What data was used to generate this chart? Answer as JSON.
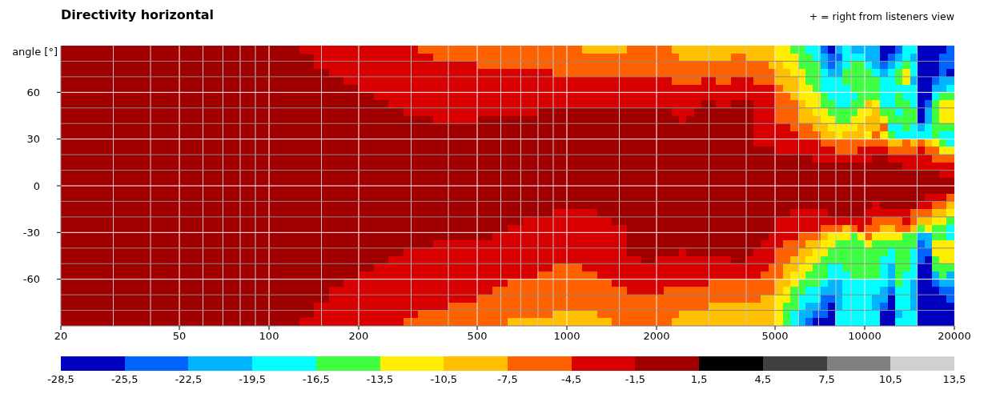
{
  "chart_data": {
    "type": "heatmap",
    "title": "Directivity horizontal",
    "ylabel": "angle [°]",
    "annotations": [
      "+ = right from listeners view"
    ],
    "x": [
      21.2,
      23.8,
      26.7,
      29.9,
      33.6,
      37.7,
      42.3,
      47.4,
      53.2,
      59.7,
      67,
      75.2,
      84.3,
      94.6,
      106,
      119,
      134,
      150,
      168,
      189,
      212,
      238,
      267,
      299,
      336,
      377,
      423,
      474,
      532,
      597,
      670,
      752,
      843,
      946,
      1060,
      1190,
      1340,
      1500,
      1680,
      1890,
      2060,
      2180,
      2310,
      2450,
      2590,
      2750,
      2910,
      3080,
      3260,
      3460,
      3660,
      3880,
      4110,
      4350,
      4610,
      4880,
      5170,
      5480,
      5800,
      6150,
      6510,
      6890,
      7300,
      7740,
      8190,
      8680,
      9190,
      9740,
      10300,
      10900,
      11600,
      12300,
      13000,
      13800,
      14600,
      15400,
      16400,
      17300,
      18300,
      19400
    ],
    "xlim": [
      20,
      20000
    ],
    "xticks": [
      20,
      {
        "value": 30,
        "label": null
      },
      {
        "value": 40,
        "label": null
      },
      50,
      {
        "value": 60,
        "label": null
      },
      {
        "value": 70,
        "label": null
      },
      {
        "value": 80,
        "label": null
      },
      {
        "value": 90,
        "label": null
      },
      100,
      {
        "value": 150,
        "label": null
      },
      200,
      {
        "value": 300,
        "label": null
      },
      {
        "value": 400,
        "label": null
      },
      500,
      {
        "value": 600,
        "label": null
      },
      {
        "value": 700,
        "label": null
      },
      {
        "value": 800,
        "label": null
      },
      {
        "value": 900,
        "label": null
      },
      1000,
      {
        "value": 1500,
        "label": null
      },
      2000,
      {
        "value": 3000,
        "label": null
      },
      {
        "value": 4000,
        "label": null
      },
      5000,
      {
        "value": 6000,
        "label": null
      },
      {
        "value": 7000,
        "label": null
      },
      {
        "value": 8000,
        "label": null
      },
      {
        "value": 9000,
        "label": null
      },
      10000,
      {
        "value": 15000,
        "label": null
      },
      20000
    ],
    "log": "x",
    "ylim": [
      -90,
      90
    ],
    "yticks": [
      {
        "value": -80,
        "label": null
      },
      {
        "value": -70,
        "label": null
      },
      -60,
      {
        "value": -50,
        "label": null
      },
      {
        "value": -40,
        "label": null
      },
      -30,
      {
        "value": -20,
        "label": null
      },
      {
        "value": -10,
        "label": null
      },
      0,
      {
        "value": 10,
        "label": null
      },
      {
        "value": 20,
        "label": null
      },
      30,
      {
        "value": 40,
        "label": null
      },
      {
        "value": 50,
        "label": null
      },
      60,
      {
        "value": 70,
        "label": null
      },
      {
        "value": 80,
        "label": null
      }
    ],
    "grid": true,
    "clim": [
      -28.5,
      13.5
    ],
    "cticks": [
      {
        "value": -28.5,
        "label": "-28,5"
      },
      {
        "value": -25.5,
        "label": "-25,5"
      },
      {
        "value": -22.5,
        "label": "-22,5"
      },
      {
        "value": -19.5,
        "label": "-19,5"
      },
      {
        "value": -16.5,
        "label": "-16,5"
      },
      {
        "value": -13.5,
        "label": "-13,5"
      },
      {
        "value": -10.5,
        "label": "-10,5"
      },
      {
        "value": -7.5,
        "label": "-7,5"
      },
      {
        "value": -4.5,
        "label": "-4,5"
      },
      {
        "value": -1.5,
        "label": "-1,5"
      },
      {
        "value": 1.5,
        "label": "1,5"
      },
      {
        "value": 4.5,
        "label": "4,5"
      },
      {
        "value": 7.5,
        "label": "7,5"
      },
      {
        "value": 10.5,
        "label": "10,5"
      },
      {
        "value": 13.5,
        "label": "13,5"
      }
    ],
    "cells": [
      [
        0,
        0,
        0,
        0,
        0,
        0,
        0,
        0,
        0,
        0,
        0,
        0,
        0,
        0,
        0,
        0,
        -3,
        -3,
        -3,
        -3,
        -3,
        -3,
        -3,
        -3,
        -6,
        -6,
        -6,
        -6,
        -6,
        -6,
        -6,
        -6,
        -6,
        -6,
        -6,
        -9,
        -9,
        -9,
        -6,
        -6,
        -6,
        -6,
        -9,
        -9,
        -9,
        -9,
        -9,
        -9,
        -9,
        -9,
        -9,
        -9,
        -9,
        -9,
        -9,
        -9,
        -12,
        -12,
        -15,
        -15,
        -18,
        -18,
        -24,
        -27,
        -21,
        -18,
        -21,
        -21,
        -21,
        -21,
        -27,
        -27,
        -24,
        -18,
        -18,
        -27,
        -27,
        -27,
        -27,
        -24
      ],
      [
        0,
        0,
        0,
        0,
        0,
        0,
        0,
        0,
        0,
        0,
        0,
        0,
        0,
        0,
        0,
        0,
        0,
        -3,
        -3,
        -3,
        -3,
        -3,
        -3,
        -3,
        -3,
        -6,
        -6,
        -6,
        -6,
        -6,
        -6,
        -6,
        -6,
        -6,
        -6,
        -6,
        -6,
        -6,
        -6,
        -6,
        -6,
        -6,
        -6,
        -9,
        -9,
        -9,
        -9,
        -9,
        -9,
        -9,
        -6,
        -6,
        -9,
        -9,
        -9,
        -9,
        -12,
        -12,
        -12,
        -15,
        -15,
        -18,
        -21,
        -24,
        -24,
        -18,
        -18,
        -18,
        -21,
        -21,
        -27,
        -24,
        -21,
        -18,
        -21,
        -27,
        -27,
        -27,
        -24,
        -24
      ],
      [
        0,
        0,
        0,
        0,
        0,
        0,
        0,
        0,
        0,
        0,
        0,
        0,
        0,
        0,
        0,
        0,
        0,
        -3,
        -3,
        -3,
        -3,
        -3,
        -3,
        -3,
        -3,
        -3,
        -3,
        -3,
        -6,
        -6,
        -6,
        -6,
        -6,
        -6,
        -6,
        -6,
        -6,
        -6,
        -6,
        -6,
        -6,
        -6,
        -6,
        -6,
        -6,
        -6,
        -6,
        -6,
        -6,
        -6,
        -6,
        -6,
        -6,
        -6,
        -6,
        -9,
        -9,
        -12,
        -12,
        -15,
        -15,
        -15,
        -21,
        -24,
        -21,
        -18,
        -15,
        -15,
        -18,
        -21,
        -24,
        -21,
        -18,
        -15,
        -18,
        -27,
        -27,
        -27,
        -24,
        -24
      ],
      [
        0,
        0,
        0,
        0,
        0,
        0,
        0,
        0,
        0,
        0,
        0,
        0,
        0,
        0,
        0,
        0,
        0,
        0,
        -3,
        -3,
        -3,
        -3,
        -3,
        -3,
        -3,
        -3,
        -3,
        -3,
        -3,
        -3,
        -3,
        -3,
        -3,
        -6,
        -6,
        -6,
        -6,
        -6,
        -6,
        -6,
        -6,
        -6,
        -6,
        -6,
        -6,
        -6,
        -6,
        -6,
        -6,
        -6,
        -6,
        -6,
        -6,
        -6,
        -6,
        -6,
        -9,
        -9,
        -12,
        -12,
        -15,
        -15,
        -18,
        -21,
        -21,
        -15,
        -15,
        -15,
        -15,
        -18,
        -21,
        -18,
        -15,
        -12,
        -18,
        -27,
        -27,
        -27,
        -24,
        -27
      ],
      [
        0,
        0,
        0,
        0,
        0,
        0,
        0,
        0,
        0,
        0,
        0,
        0,
        0,
        0,
        0,
        0,
        0,
        0,
        0,
        -3,
        -3,
        -3,
        -3,
        -3,
        -3,
        -3,
        -3,
        -3,
        -3,
        -3,
        -3,
        -3,
        -3,
        -3,
        -3,
        -3,
        -3,
        -3,
        -3,
        -3,
        -3,
        -3,
        -6,
        -6,
        -6,
        -6,
        -3,
        -3,
        -6,
        -6,
        -3,
        -3,
        -3,
        -6,
        -6,
        -6,
        -9,
        -9,
        -9,
        -12,
        -15,
        -15,
        -18,
        -18,
        -18,
        -15,
        -15,
        -15,
        -15,
        -15,
        -18,
        -18,
        -15,
        -12,
        -21,
        -27,
        -27,
        -24,
        -21,
        -21
      ],
      [
        0,
        0,
        0,
        0,
        0,
        0,
        0,
        0,
        0,
        0,
        0,
        0,
        0,
        0,
        0,
        0,
        0,
        0,
        0,
        0,
        -3,
        -3,
        -3,
        -3,
        -3,
        -3,
        -3,
        -3,
        -3,
        -3,
        -3,
        -3,
        -3,
        -3,
        -3,
        -3,
        -3,
        -3,
        -3,
        -3,
        -3,
        -3,
        -3,
        -3,
        -3,
        -3,
        -3,
        -3,
        -3,
        -3,
        -3,
        -3,
        -3,
        -3,
        -3,
        -3,
        -6,
        -9,
        -9,
        -12,
        -12,
        -15,
        -18,
        -18,
        -18,
        -18,
        -15,
        -15,
        -15,
        -15,
        -18,
        -18,
        -18,
        -18,
        -18,
        -27,
        -27,
        -21,
        -21,
        -18
      ],
      [
        0,
        0,
        0,
        0,
        0,
        0,
        0,
        0,
        0,
        0,
        0,
        0,
        0,
        0,
        0,
        0,
        0,
        0,
        0,
        0,
        0,
        -3,
        -3,
        -3,
        -3,
        -3,
        -3,
        -3,
        -3,
        -3,
        -3,
        -3,
        -3,
        -3,
        -3,
        -3,
        -3,
        -3,
        -3,
        -3,
        -3,
        -3,
        -3,
        -3,
        -3,
        -3,
        -3,
        -3,
        -3,
        -3,
        -3,
        -3,
        -3,
        -3,
        -3,
        -3,
        -6,
        -6,
        -9,
        -12,
        -12,
        -12,
        -15,
        -18,
        -18,
        -18,
        -18,
        -15,
        -15,
        -15,
        -18,
        -18,
        -15,
        -18,
        -18,
        -27,
        -27,
        -18,
        -15,
        -15
      ],
      [
        0,
        0,
        0,
        0,
        0,
        0,
        0,
        0,
        0,
        0,
        0,
        0,
        0,
        0,
        0,
        0,
        0,
        0,
        0,
        0,
        0,
        0,
        -3,
        -3,
        -3,
        -3,
        -3,
        -3,
        -3,
        -3,
        -3,
        -3,
        -3,
        -3,
        -3,
        -3,
        -3,
        -3,
        -3,
        -3,
        -3,
        -3,
        -3,
        -3,
        -3,
        -3,
        0,
        0,
        -3,
        -3,
        0,
        0,
        0,
        -3,
        -3,
        -3,
        -6,
        -6,
        -6,
        -9,
        -12,
        -12,
        -15,
        -15,
        -18,
        -18,
        -15,
        -15,
        -9,
        -12,
        -18,
        -18,
        -15,
        -15,
        -18,
        -27,
        -24,
        -15,
        -12,
        -12
      ],
      [
        0,
        0,
        0,
        0,
        0,
        0,
        0,
        0,
        0,
        0,
        0,
        0,
        0,
        0,
        0,
        0,
        0,
        0,
        0,
        0,
        0,
        0,
        0,
        -3,
        -3,
        -3,
        -3,
        -3,
        -3,
        -3,
        -3,
        -3,
        0,
        0,
        0,
        0,
        0,
        0,
        0,
        0,
        0,
        0,
        -3,
        -3,
        -3,
        0,
        0,
        0,
        0,
        0,
        0,
        0,
        0,
        -3,
        -3,
        -3,
        -6,
        -6,
        -6,
        -9,
        -9,
        -12,
        -12,
        -15,
        -15,
        -15,
        -15,
        -12,
        -12,
        -9,
        -15,
        -15,
        -18,
        -15,
        -15,
        -27,
        -21,
        -15,
        -12,
        -12
      ],
      [
        0,
        0,
        0,
        0,
        0,
        0,
        0,
        0,
        0,
        0,
        0,
        0,
        0,
        0,
        0,
        0,
        0,
        0,
        0,
        0,
        0,
        0,
        0,
        0,
        0,
        -3,
        -3,
        -3,
        0,
        0,
        0,
        0,
        0,
        0,
        0,
        0,
        0,
        0,
        0,
        0,
        0,
        0,
        0,
        -3,
        0,
        0,
        0,
        0,
        0,
        0,
        0,
        0,
        0,
        -3,
        -3,
        -3,
        -6,
        -6,
        -6,
        -9,
        -9,
        -9,
        -12,
        -12,
        -15,
        -15,
        -12,
        -12,
        -9,
        -9,
        -12,
        -15,
        -15,
        -15,
        -15,
        -27,
        -21,
        -15,
        -12,
        -12
      ],
      [
        0,
        0,
        0,
        0,
        0,
        0,
        0,
        0,
        0,
        0,
        0,
        0,
        0,
        0,
        0,
        0,
        0,
        0,
        0,
        0,
        0,
        0,
        0,
        0,
        0,
        0,
        0,
        0,
        0,
        0,
        0,
        0,
        0,
        0,
        0,
        0,
        0,
        0,
        0,
        0,
        0,
        0,
        0,
        0,
        0,
        0,
        0,
        0,
        0,
        0,
        0,
        0,
        0,
        -3,
        -3,
        -3,
        -3,
        -3,
        -6,
        -6,
        -6,
        -9,
        -9,
        -12,
        -12,
        -12,
        -12,
        -9,
        -9,
        -9,
        -6,
        -18,
        -18,
        -15,
        -18,
        -21,
        -18,
        -15,
        -15,
        -15
      ],
      [
        0,
        0,
        0,
        0,
        0,
        0,
        0,
        0,
        0,
        0,
        0,
        0,
        0,
        0,
        0,
        0,
        0,
        0,
        0,
        0,
        0,
        0,
        0,
        0,
        0,
        0,
        0,
        0,
        0,
        0,
        0,
        0,
        0,
        0,
        0,
        0,
        0,
        0,
        0,
        0,
        0,
        0,
        0,
        0,
        0,
        0,
        0,
        0,
        0,
        0,
        0,
        0,
        0,
        -3,
        -3,
        -3,
        -3,
        -3,
        -3,
        -6,
        -6,
        -6,
        -9,
        -9,
        -12,
        -9,
        -9,
        -9,
        -12,
        -6,
        -12,
        -15,
        -18,
        -18,
        -18,
        -18,
        -18,
        -15,
        -18,
        -18
      ],
      [
        0,
        0,
        0,
        0,
        0,
        0,
        0,
        0,
        0,
        0,
        0,
        0,
        0,
        0,
        0,
        0,
        0,
        0,
        0,
        0,
        0,
        0,
        0,
        0,
        0,
        0,
        0,
        0,
        0,
        0,
        0,
        0,
        0,
        0,
        0,
        0,
        0,
        0,
        0,
        0,
        0,
        0,
        0,
        0,
        0,
        0,
        0,
        0,
        0,
        0,
        0,
        0,
        0,
        -3,
        -3,
        -3,
        -3,
        -3,
        -3,
        -3,
        -3,
        -3,
        -6,
        -6,
        -6,
        -6,
        -6,
        -6,
        -6,
        -6,
        -6,
        -9,
        -9,
        -6,
        -9,
        -6,
        -9,
        -12,
        -15,
        -18
      ],
      [
        0,
        0,
        0,
        0,
        0,
        0,
        0,
        0,
        0,
        0,
        0,
        0,
        0,
        0,
        0,
        0,
        0,
        0,
        0,
        0,
        0,
        0,
        0,
        0,
        0,
        0,
        0,
        0,
        0,
        0,
        0,
        0,
        0,
        0,
        0,
        0,
        0,
        0,
        0,
        0,
        0,
        0,
        0,
        0,
        0,
        0,
        0,
        0,
        0,
        0,
        0,
        0,
        0,
        0,
        0,
        0,
        -3,
        -3,
        -3,
        -3,
        -3,
        -3,
        -3,
        -3,
        -6,
        -6,
        -6,
        -3,
        -3,
        -3,
        -3,
        -6,
        -6,
        -6,
        -6,
        -3,
        -6,
        -6,
        -12,
        -12
      ],
      [
        0,
        0,
        0,
        0,
        0,
        0,
        0,
        0,
        0,
        0,
        0,
        0,
        0,
        0,
        0,
        0,
        0,
        0,
        0,
        0,
        0,
        0,
        0,
        0,
        0,
        0,
        0,
        0,
        0,
        0,
        0,
        0,
        0,
        0,
        0,
        0,
        0,
        0,
        0,
        0,
        0,
        0,
        0,
        0,
        0,
        0,
        0,
        0,
        0,
        0,
        0,
        0,
        0,
        0,
        0,
        0,
        0,
        0,
        0,
        0,
        0,
        -3,
        -3,
        -3,
        -3,
        -3,
        -3,
        -3,
        -3,
        0,
        0,
        -3,
        -3,
        -3,
        -3,
        -3,
        -3,
        -6,
        -6,
        -6
      ],
      [
        0,
        0,
        0,
        0,
        0,
        0,
        0,
        0,
        0,
        0,
        0,
        0,
        0,
        0,
        0,
        0,
        0,
        0,
        0,
        0,
        0,
        0,
        0,
        0,
        0,
        0,
        0,
        0,
        0,
        0,
        0,
        0,
        0,
        0,
        0,
        0,
        0,
        0,
        0,
        0,
        0,
        0,
        0,
        0,
        0,
        0,
        0,
        0,
        0,
        0,
        0,
        0,
        0,
        0,
        0,
        0,
        0,
        0,
        0,
        0,
        0,
        0,
        0,
        0,
        0,
        0,
        0,
        0,
        0,
        0,
        0,
        0,
        0,
        -3,
        -3,
        -3,
        -3,
        -3,
        -3,
        -3
      ],
      [
        0,
        0,
        0,
        0,
        0,
        0,
        0,
        0,
        0,
        0,
        0,
        0,
        0,
        0,
        0,
        0,
        0,
        0,
        0,
        0,
        0,
        0,
        0,
        0,
        0,
        0,
        0,
        0,
        0,
        0,
        0,
        0,
        0,
        0,
        0,
        0,
        0,
        0,
        0,
        0,
        0,
        0,
        0,
        0,
        0,
        0,
        0,
        0,
        0,
        0,
        0,
        0,
        0,
        0,
        0,
        0,
        0,
        0,
        0,
        0,
        0,
        0,
        0,
        0,
        0,
        0,
        0,
        0,
        0,
        0,
        0,
        0,
        0,
        0,
        0,
        0,
        0,
        0,
        -3,
        -3
      ],
      [
        0,
        0,
        0,
        0,
        0,
        0,
        0,
        0,
        0,
        0,
        0,
        0,
        0,
        0,
        0,
        0,
        0,
        0,
        0,
        0,
        0,
        0,
        0,
        0,
        0,
        0,
        0,
        0,
        0,
        0,
        0,
        0,
        0,
        0,
        0,
        0,
        0,
        0,
        0,
        0,
        0,
        0,
        0,
        0,
        0,
        0,
        0,
        0,
        0,
        0,
        0,
        0,
        0,
        0,
        0,
        0,
        0,
        0,
        0,
        0,
        0,
        0,
        0,
        0,
        0,
        0,
        0,
        0,
        0,
        0,
        0,
        0,
        0,
        0,
        0,
        0,
        0,
        0,
        0,
        0
      ],
      [
        0,
        0,
        0,
        0,
        0,
        0,
        0,
        0,
        0,
        0,
        0,
        0,
        0,
        0,
        0,
        0,
        0,
        0,
        0,
        0,
        0,
        0,
        0,
        0,
        0,
        0,
        0,
        0,
        0,
        0,
        0,
        0,
        0,
        0,
        0,
        0,
        0,
        0,
        0,
        0,
        0,
        0,
        0,
        0,
        0,
        0,
        0,
        0,
        0,
        0,
        0,
        0,
        0,
        0,
        0,
        0,
        0,
        0,
        0,
        0,
        0,
        0,
        0,
        0,
        0,
        0,
        0,
        0,
        0,
        0,
        0,
        0,
        0,
        0,
        0,
        0,
        0,
        0,
        0,
        0
      ],
      [
        0,
        0,
        0,
        0,
        0,
        0,
        0,
        0,
        0,
        0,
        0,
        0,
        0,
        0,
        0,
        0,
        0,
        0,
        0,
        0,
        0,
        0,
        0,
        0,
        0,
        0,
        0,
        0,
        0,
        0,
        0,
        0,
        0,
        0,
        0,
        0,
        0,
        0,
        0,
        0,
        0,
        0,
        0,
        0,
        0,
        0,
        0,
        0,
        0,
        0,
        0,
        0,
        0,
        0,
        0,
        0,
        0,
        0,
        0,
        0,
        0,
        0,
        0,
        0,
        0,
        0,
        0,
        0,
        0,
        0,
        0,
        0,
        0,
        0,
        0,
        0,
        -3,
        -3,
        -3,
        -6
      ],
      [
        0,
        0,
        0,
        0,
        0,
        0,
        0,
        0,
        0,
        0,
        0,
        0,
        0,
        0,
        0,
        0,
        0,
        0,
        0,
        0,
        0,
        0,
        0,
        0,
        0,
        0,
        0,
        0,
        0,
        0,
        0,
        0,
        0,
        0,
        0,
        0,
        0,
        0,
        0,
        0,
        0,
        0,
        0,
        0,
        0,
        0,
        0,
        0,
        0,
        0,
        0,
        0,
        0,
        0,
        0,
        0,
        0,
        0,
        0,
        0,
        0,
        0,
        0,
        0,
        0,
        0,
        0,
        0,
        0,
        -3,
        0,
        0,
        0,
        0,
        0,
        -3,
        -3,
        -6,
        -6,
        -9
      ],
      [
        0,
        0,
        0,
        0,
        0,
        0,
        0,
        0,
        0,
        0,
        0,
        0,
        0,
        0,
        0,
        0,
        0,
        0,
        0,
        0,
        0,
        0,
        0,
        0,
        0,
        0,
        0,
        0,
        0,
        0,
        0,
        0,
        0,
        -3,
        -3,
        -3,
        0,
        0,
        0,
        0,
        0,
        0,
        0,
        0,
        0,
        0,
        0,
        0,
        0,
        0,
        0,
        0,
        0,
        0,
        0,
        0,
        0,
        0,
        -3,
        -3,
        -3,
        -3,
        -3,
        0,
        0,
        0,
        0,
        0,
        -3,
        -3,
        -3,
        -3,
        -3,
        -3,
        -6,
        -6,
        -6,
        -9,
        -9,
        -12
      ],
      [
        0,
        0,
        0,
        0,
        0,
        0,
        0,
        0,
        0,
        0,
        0,
        0,
        0,
        0,
        0,
        0,
        0,
        0,
        0,
        0,
        0,
        0,
        0,
        0,
        0,
        0,
        0,
        0,
        0,
        0,
        0,
        -3,
        -3,
        -3,
        -3,
        -3,
        -3,
        0,
        0,
        0,
        0,
        0,
        0,
        0,
        0,
        0,
        0,
        0,
        0,
        0,
        0,
        0,
        0,
        0,
        0,
        0,
        -3,
        -3,
        -3,
        -3,
        -3,
        -3,
        -3,
        -3,
        -3,
        -3,
        -3,
        -3,
        -3,
        -6,
        -6,
        -6,
        -6,
        -3,
        -6,
        -9,
        -9,
        -12,
        -12,
        -15
      ],
      [
        0,
        0,
        0,
        0,
        0,
        0,
        0,
        0,
        0,
        0,
        0,
        0,
        0,
        0,
        0,
        0,
        0,
        0,
        0,
        0,
        0,
        0,
        0,
        0,
        0,
        0,
        0,
        0,
        0,
        0,
        -3,
        -3,
        -3,
        -3,
        -3,
        -3,
        -3,
        -3,
        0,
        0,
        0,
        0,
        0,
        0,
        0,
        0,
        0,
        0,
        0,
        0,
        0,
        0,
        0,
        0,
        0,
        0,
        -3,
        -3,
        -3,
        -3,
        -3,
        -3,
        -6,
        -6,
        -6,
        -9,
        -6,
        -3,
        -6,
        -6,
        -9,
        -9,
        -6,
        -6,
        -9,
        -15,
        -12,
        -15,
        -15,
        -18
      ],
      [
        0,
        0,
        0,
        0,
        0,
        0,
        0,
        0,
        0,
        0,
        0,
        0,
        0,
        0,
        0,
        0,
        0,
        0,
        0,
        0,
        0,
        0,
        0,
        0,
        0,
        0,
        0,
        0,
        0,
        -3,
        -3,
        -3,
        -3,
        -3,
        -3,
        -3,
        -3,
        -3,
        0,
        0,
        0,
        0,
        0,
        0,
        0,
        0,
        0,
        0,
        0,
        0,
        0,
        0,
        0,
        0,
        0,
        -3,
        -3,
        -3,
        -3,
        -6,
        -6,
        -6,
        -9,
        -12,
        -12,
        -12,
        -15,
        -12,
        -6,
        -12,
        -12,
        -12,
        -12,
        -15,
        -15,
        -21,
        -21,
        -15,
        -15,
        -18
      ],
      [
        0,
        0,
        0,
        0,
        0,
        0,
        0,
        0,
        0,
        0,
        0,
        0,
        0,
        0,
        0,
        0,
        0,
        0,
        0,
        0,
        0,
        0,
        0,
        0,
        0,
        -3,
        -3,
        -3,
        -3,
        -3,
        -3,
        -3,
        -3,
        -3,
        -3,
        -3,
        -3,
        -3,
        0,
        0,
        0,
        0,
        0,
        0,
        0,
        0,
        0,
        0,
        0,
        0,
        0,
        0,
        0,
        0,
        -3,
        -3,
        -3,
        -6,
        -6,
        -6,
        -9,
        -9,
        -12,
        -12,
        -15,
        -15,
        -15,
        -15,
        -12,
        -15,
        -15,
        -15,
        -15,
        -15,
        -15,
        -24,
        -21,
        -12,
        -12,
        -12
      ],
      [
        0,
        0,
        0,
        0,
        0,
        0,
        0,
        0,
        0,
        0,
        0,
        0,
        0,
        0,
        0,
        0,
        0,
        0,
        0,
        0,
        0,
        0,
        0,
        -3,
        -3,
        -3,
        -3,
        -3,
        -3,
        -3,
        -3,
        -3,
        -3,
        -3,
        -3,
        -3,
        -3,
        -3,
        0,
        0,
        0,
        0,
        0,
        -3,
        0,
        0,
        0,
        0,
        0,
        0,
        0,
        0,
        0,
        -3,
        -3,
        -3,
        -6,
        -6,
        -6,
        -9,
        -9,
        -12,
        -12,
        -15,
        -15,
        -15,
        -15,
        -15,
        -15,
        -15,
        -15,
        -18,
        -15,
        -15,
        -18,
        -24,
        -24,
        -12,
        -12,
        -12
      ],
      [
        0,
        0,
        0,
        0,
        0,
        0,
        0,
        0,
        0,
        0,
        0,
        0,
        0,
        0,
        0,
        0,
        0,
        0,
        0,
        0,
        0,
        0,
        -3,
        -3,
        -3,
        -3,
        -3,
        -3,
        -3,
        -3,
        -3,
        -3,
        -3,
        -3,
        -3,
        -3,
        -3,
        -3,
        -3,
        0,
        -3,
        -3,
        -3,
        -3,
        -3,
        -3,
        -3,
        -3,
        -3,
        -3,
        0,
        0,
        -3,
        -3,
        -3,
        -3,
        -6,
        -6,
        -9,
        -9,
        -12,
        -12,
        -15,
        -15,
        -15,
        -15,
        -15,
        -15,
        -15,
        -15,
        -18,
        -18,
        -15,
        -15,
        -18,
        -24,
        -27,
        -15,
        -12,
        -12
      ],
      [
        0,
        0,
        0,
        0,
        0,
        0,
        0,
        0,
        0,
        0,
        0,
        0,
        0,
        0,
        0,
        0,
        0,
        0,
        0,
        0,
        0,
        -3,
        -3,
        -3,
        -3,
        -3,
        -3,
        -3,
        -3,
        -3,
        -3,
        -3,
        -3,
        -6,
        -6,
        -3,
        -3,
        -3,
        -3,
        -3,
        -3,
        -3,
        -3,
        -3,
        -3,
        -3,
        -3,
        -3,
        -3,
        -3,
        -3,
        -3,
        -3,
        -3,
        -3,
        -6,
        -6,
        -9,
        -9,
        -12,
        -12,
        -15,
        -15,
        -18,
        -18,
        -15,
        -15,
        -15,
        -15,
        -15,
        -18,
        -21,
        -15,
        -15,
        -18,
        -27,
        -27,
        -15,
        -15,
        -15
      ],
      [
        0,
        0,
        0,
        0,
        0,
        0,
        0,
        0,
        0,
        0,
        0,
        0,
        0,
        0,
        0,
        0,
        0,
        0,
        0,
        0,
        -3,
        -3,
        -3,
        -3,
        -3,
        -3,
        -3,
        -3,
        -3,
        -3,
        -3,
        -3,
        -6,
        -6,
        -6,
        -6,
        -3,
        -3,
        -3,
        -3,
        -3,
        -3,
        -3,
        -3,
        -3,
        -3,
        -3,
        -3,
        -3,
        -3,
        -3,
        -3,
        -3,
        -3,
        -6,
        -6,
        -6,
        -9,
        -12,
        -12,
        -15,
        -15,
        -15,
        -18,
        -18,
        -18,
        -15,
        -15,
        -15,
        -15,
        -18,
        -21,
        -15,
        -18,
        -18,
        -27,
        -27,
        -21,
        -15,
        -21
      ],
      [
        0,
        0,
        0,
        0,
        0,
        0,
        0,
        0,
        0,
        0,
        0,
        0,
        0,
        0,
        0,
        0,
        0,
        0,
        0,
        -3,
        -3,
        -3,
        -3,
        -3,
        -3,
        -3,
        -3,
        -3,
        -3,
        -3,
        -6,
        -6,
        -6,
        -6,
        -6,
        -6,
        -6,
        -3,
        -3,
        -3,
        -3,
        -3,
        -3,
        -3,
        -3,
        -3,
        -3,
        -6,
        -6,
        -6,
        -6,
        -6,
        -6,
        -6,
        -6,
        -6,
        -9,
        -9,
        -12,
        -15,
        -15,
        -15,
        -18,
        -21,
        -21,
        -18,
        -18,
        -18,
        -18,
        -18,
        -18,
        -21,
        -15,
        -18,
        -21,
        -27,
        -27,
        -24,
        -21,
        -21
      ],
      [
        0,
        0,
        0,
        0,
        0,
        0,
        0,
        0,
        0,
        0,
        0,
        0,
        0,
        0,
        0,
        0,
        0,
        0,
        -3,
        -3,
        -3,
        -3,
        -3,
        -3,
        -3,
        -3,
        -3,
        -3,
        -3,
        -6,
        -6,
        -6,
        -6,
        -6,
        -6,
        -6,
        -6,
        -6,
        -3,
        -3,
        -3,
        -6,
        -6,
        -6,
        -6,
        -6,
        -6,
        -6,
        -6,
        -6,
        -6,
        -6,
        -6,
        -6,
        -6,
        -6,
        -9,
        -12,
        -15,
        -15,
        -18,
        -18,
        -21,
        -21,
        -21,
        -18,
        -18,
        -18,
        -18,
        -18,
        -21,
        -24,
        -18,
        -18,
        -21,
        -27,
        -27,
        -27,
        -24,
        -24
      ],
      [
        0,
        0,
        0,
        0,
        0,
        0,
        0,
        0,
        0,
        0,
        0,
        0,
        0,
        0,
        0,
        0,
        0,
        0,
        -3,
        -3,
        -3,
        -3,
        -3,
        -3,
        -3,
        -3,
        -3,
        -3,
        -6,
        -6,
        -6,
        -6,
        -6,
        -6,
        -6,
        -6,
        -6,
        -6,
        -6,
        -6,
        -6,
        -6,
        -6,
        -6,
        -6,
        -6,
        -6,
        -6,
        -6,
        -6,
        -6,
        -6,
        -6,
        -6,
        -9,
        -9,
        -12,
        -12,
        -15,
        -18,
        -18,
        -18,
        -24,
        -24,
        -21,
        -18,
        -18,
        -18,
        -18,
        -21,
        -21,
        -27,
        -18,
        -18,
        -21,
        -27,
        -27,
        -27,
        -27,
        -24
      ],
      [
        0,
        0,
        0,
        0,
        0,
        0,
        0,
        0,
        0,
        0,
        0,
        0,
        0,
        0,
        0,
        0,
        0,
        -3,
        -3,
        -3,
        -3,
        -3,
        -3,
        -3,
        -3,
        -3,
        -6,
        -6,
        -6,
        -6,
        -6,
        -6,
        -6,
        -6,
        -6,
        -6,
        -6,
        -6,
        -6,
        -6,
        -6,
        -6,
        -6,
        -6,
        -6,
        -6,
        -6,
        -9,
        -9,
        -9,
        -9,
        -9,
        -9,
        -9,
        -9,
        -9,
        -12,
        -15,
        -15,
        -18,
        -21,
        -21,
        -24,
        -27,
        -21,
        -18,
        -18,
        -18,
        -18,
        -21,
        -24,
        -27,
        -18,
        -18,
        -21,
        -27,
        -27,
        -27,
        -27,
        -27
      ],
      [
        0,
        0,
        0,
        0,
        0,
        0,
        0,
        0,
        0,
        0,
        0,
        0,
        0,
        0,
        0,
        0,
        0,
        -3,
        -3,
        -3,
        -3,
        -3,
        -3,
        -3,
        -6,
        -6,
        -6,
        -6,
        -6,
        -6,
        -6,
        -6,
        -6,
        -9,
        -9,
        -9,
        -6,
        -6,
        -6,
        -6,
        -6,
        -6,
        -6,
        -9,
        -9,
        -9,
        -9,
        -9,
        -9,
        -9,
        -9,
        -9,
        -9,
        -9,
        -9,
        -9,
        -12,
        -15,
        -18,
        -21,
        -21,
        -24,
        -24,
        -27,
        -18,
        -18,
        -18,
        -18,
        -18,
        -18,
        -27,
        -27,
        -21,
        -18,
        -18,
        -27,
        -27,
        -27,
        -27,
        -27
      ],
      [
        0,
        0,
        0,
        0,
        0,
        0,
        0,
        0,
        0,
        0,
        0,
        0,
        0,
        0,
        0,
        0,
        -3,
        -3,
        -3,
        -3,
        -3,
        -3,
        -3,
        -6,
        -6,
        -6,
        -6,
        -6,
        -6,
        -6,
        -9,
        -9,
        -9,
        -9,
        -9,
        -9,
        -9,
        -6,
        -6,
        -6,
        -6,
        -6,
        -9,
        -9,
        -9,
        -9,
        -9,
        -9,
        -9,
        -9,
        -9,
        -9,
        -9,
        -9,
        -9,
        -9,
        -12,
        -15,
        -18,
        -21,
        -24,
        -27,
        -27,
        -27,
        -18,
        -18,
        -18,
        -18,
        -18,
        -18,
        -27,
        -27,
        -18,
        -18,
        -18,
        -27,
        -27,
        -27,
        -27,
        -27
      ]
    ]
  }
}
